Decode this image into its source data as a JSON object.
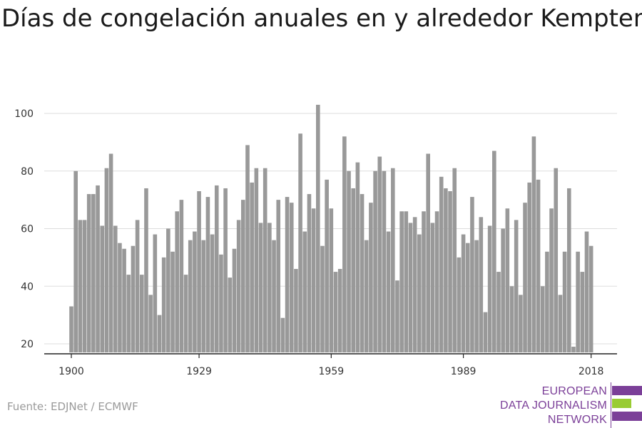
{
  "title": "Días de congelación anuales en y alrededor Kempten",
  "source": "Fuente: EDJNet / ECMWF",
  "logo": {
    "lines": [
      "EUROPEAN",
      "DATA JOURNALISM",
      "NETWORK"
    ],
    "colors": {
      "purple": "#7b3f98",
      "green": "#99cc33"
    }
  },
  "chart_data": {
    "type": "bar",
    "x": [
      1900,
      1901,
      1902,
      1903,
      1904,
      1905,
      1906,
      1907,
      1908,
      1909,
      1910,
      1911,
      1912,
      1913,
      1914,
      1915,
      1916,
      1917,
      1918,
      1919,
      1920,
      1921,
      1922,
      1923,
      1924,
      1925,
      1926,
      1927,
      1928,
      1929,
      1930,
      1931,
      1932,
      1933,
      1934,
      1935,
      1936,
      1937,
      1938,
      1939,
      1940,
      1941,
      1942,
      1943,
      1944,
      1945,
      1946,
      1947,
      1948,
      1949,
      1950,
      1951,
      1952,
      1953,
      1954,
      1955,
      1956,
      1957,
      1958,
      1959,
      1960,
      1961,
      1962,
      1963,
      1964,
      1965,
      1966,
      1967,
      1968,
      1969,
      1970,
      1971,
      1972,
      1973,
      1974,
      1975,
      1976,
      1977,
      1978,
      1979,
      1980,
      1981,
      1982,
      1983,
      1984,
      1985,
      1986,
      1987,
      1988,
      1989,
      1990,
      1991,
      1992,
      1993,
      1994,
      1995,
      1996,
      1997,
      1998,
      1999,
      2000,
      2001,
      2002,
      2003,
      2004,
      2005,
      2006,
      2007,
      2008,
      2009,
      2010,
      2011,
      2012,
      2013,
      2014,
      2015,
      2016,
      2017,
      2018
    ],
    "values": [
      33,
      80,
      63,
      63,
      72,
      72,
      75,
      61,
      81,
      86,
      61,
      55,
      53,
      44,
      54,
      63,
      44,
      74,
      37,
      58,
      30,
      50,
      60,
      52,
      66,
      70,
      44,
      56,
      59,
      73,
      56,
      71,
      58,
      75,
      51,
      74,
      43,
      53,
      63,
      70,
      89,
      76,
      81,
      62,
      81,
      62,
      56,
      70,
      29,
      71,
      69,
      46,
      93,
      59,
      72,
      67,
      103,
      54,
      77,
      67,
      45,
      46,
      92,
      80,
      74,
      83,
      72,
      56,
      69,
      80,
      85,
      80,
      59,
      81,
      42,
      66,
      66,
      62,
      64,
      58,
      66,
      86,
      62,
      66,
      78,
      74,
      73,
      81,
      50,
      58,
      55,
      71,
      56,
      64,
      31,
      61,
      87,
      45,
      60,
      67,
      40,
      63,
      37,
      69,
      76,
      92,
      77,
      40,
      52,
      67,
      81,
      37,
      52,
      74,
      19,
      52,
      45,
      59,
      54
    ],
    "xticks": [
      1900,
      1929,
      1959,
      1989,
      2018
    ],
    "yticks": [
      20,
      40,
      60,
      80,
      100
    ],
    "ylim": [
      17,
      105
    ],
    "grid": true,
    "bar_color": "#999999",
    "grid_color": "#dddddd"
  }
}
